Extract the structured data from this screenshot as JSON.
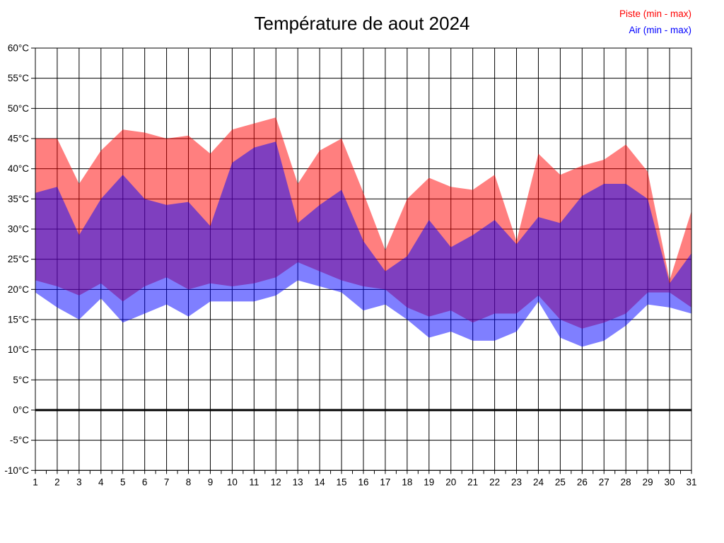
{
  "header": {
    "title": "Température de aout 2024"
  },
  "legend": [
    {
      "label": "Piste (min - max)",
      "color": "#ff0000"
    },
    {
      "label": "Air (min - max)",
      "color": "#0000ff"
    }
  ],
  "chart_data": {
    "type": "area",
    "subtype": "min-max-bands",
    "title": "Température de aout 2024",
    "xlabel": "",
    "ylabel": "",
    "x_unit": "day of month",
    "y_unit": "°C",
    "xlim": [
      1,
      31
    ],
    "ylim": [
      -10,
      60
    ],
    "grid": true,
    "zero_line": {
      "value": 0,
      "stroke_width": 3
    },
    "x": [
      1,
      2,
      3,
      4,
      5,
      6,
      7,
      8,
      9,
      10,
      11,
      12,
      13,
      14,
      15,
      16,
      17,
      18,
      19,
      20,
      21,
      22,
      23,
      24,
      25,
      26,
      27,
      28,
      29,
      30,
      31
    ],
    "x_tick_labels": [
      "1",
      "2",
      "3",
      "4",
      "5",
      "6",
      "7",
      "8",
      "9",
      "10",
      "11",
      "12",
      "13",
      "14",
      "15",
      "16",
      "17",
      "18",
      "19",
      "20",
      "21",
      "22",
      "23",
      "24",
      "25",
      "26",
      "27",
      "28",
      "29",
      "30",
      "31"
    ],
    "y_ticks": [
      60,
      55,
      50,
      45,
      40,
      35,
      30,
      25,
      20,
      15,
      10,
      5,
      0,
      -5,
      -10
    ],
    "y_tick_labels": [
      "60°C",
      "55°C",
      "50°C",
      "45°C",
      "40°C",
      "35°C",
      "30°C",
      "25°C",
      "20°C",
      "15°C",
      "10°C",
      "5°C",
      "0°C",
      "-5°C",
      "-10°C"
    ],
    "legend_position": "top-right",
    "series": [
      {
        "name": "Piste (min - max)",
        "band": true,
        "color": "#ff0000",
        "fill_opacity": 0.5,
        "min": [
          21.5,
          20.5,
          19,
          21,
          18,
          20.5,
          22,
          20,
          21,
          20.5,
          21,
          22,
          24.5,
          23,
          21.5,
          20.5,
          20,
          17,
          15.5,
          16.5,
          14.5,
          16,
          16,
          19,
          15,
          13.5,
          14.5,
          16,
          19.5,
          19.5,
          17
        ],
        "max": [
          45,
          45,
          37.5,
          43,
          46.5,
          46,
          45,
          45.5,
          42.5,
          46.5,
          47.5,
          48.5,
          37.5,
          43,
          45,
          36,
          26.5,
          35,
          38.5,
          37,
          36.5,
          39,
          28,
          42.5,
          39,
          40.5,
          41.5,
          44,
          39.5,
          21.5,
          33
        ]
      },
      {
        "name": "Air (min - max)",
        "band": true,
        "color": "#0000ff",
        "fill_opacity": 0.5,
        "min": [
          19.5,
          17,
          15,
          18.5,
          14.5,
          16,
          17.5,
          15.5,
          18,
          18,
          18,
          19,
          21.5,
          20.5,
          19.5,
          16.5,
          17.5,
          15,
          12,
          13,
          11.5,
          11.5,
          13,
          18,
          12,
          10.5,
          11.5,
          14,
          17.5,
          17,
          16
        ],
        "max": [
          36,
          37,
          29,
          35,
          39,
          35,
          34,
          34.5,
          30.5,
          41,
          43.5,
          44.5,
          31,
          34,
          36.5,
          28,
          23,
          25.5,
          31.5,
          27,
          29,
          31.5,
          27.5,
          32,
          31,
          35.5,
          37.5,
          37.5,
          35,
          21,
          26
        ]
      }
    ]
  }
}
